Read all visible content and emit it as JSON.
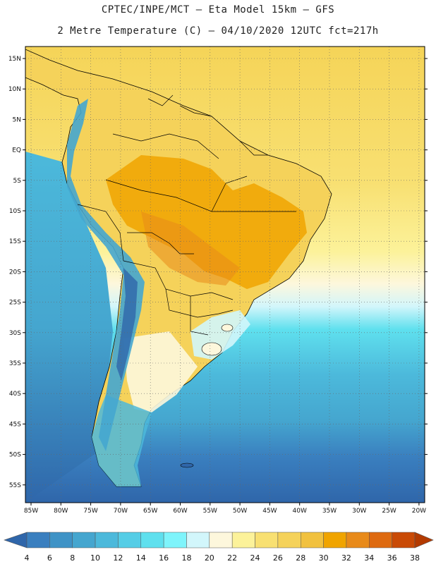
{
  "header": {
    "line1": "CPTEC/INPE/MCT –  Eta Model 15km – GFS",
    "line2": "2 Metre Temperature (C) – 04/10/2020 12UTC fct=217h"
  },
  "axes": {
    "lat_labels": [
      "15N",
      "10N",
      "5N",
      "EQ",
      "5S",
      "10S",
      "15S",
      "20S",
      "25S",
      "30S",
      "35S",
      "40S",
      "45S",
      "50S",
      "55S"
    ],
    "lon_labels": [
      "85W",
      "80W",
      "75W",
      "70W",
      "65W",
      "60W",
      "55W",
      "50W",
      "45W",
      "40W",
      "35W",
      "30W",
      "25W",
      "20W"
    ]
  },
  "colorbar": {
    "labels": [
      "4",
      "6",
      "8",
      "10",
      "12",
      "14",
      "16",
      "18",
      "20",
      "22",
      "24",
      "26",
      "28",
      "30",
      "32",
      "34",
      "36",
      "38"
    ],
    "colors": [
      "#2f66aa",
      "#3a7fbf",
      "#3f93c6",
      "#45a6cf",
      "#4cb9db",
      "#55cde6",
      "#5fe0ee",
      "#7ef4fb",
      "#d2f6fb",
      "#fdf7dc",
      "#fcf29a",
      "#f8e072",
      "#f5d25a",
      "#f1c13f",
      "#f0a400",
      "#e88a1a",
      "#de6a10",
      "#c94a06",
      "#b33a00"
    ]
  },
  "colors": {
    "ocean_north": "#f3d45c",
    "ocean_mid": "#fdf3c9",
    "ocean_south": "#3f93c6",
    "land_hot": "#f0a400",
    "land_warm": "#f5d25a",
    "andes_cold": "#45a6cf",
    "border": "#000000"
  }
}
